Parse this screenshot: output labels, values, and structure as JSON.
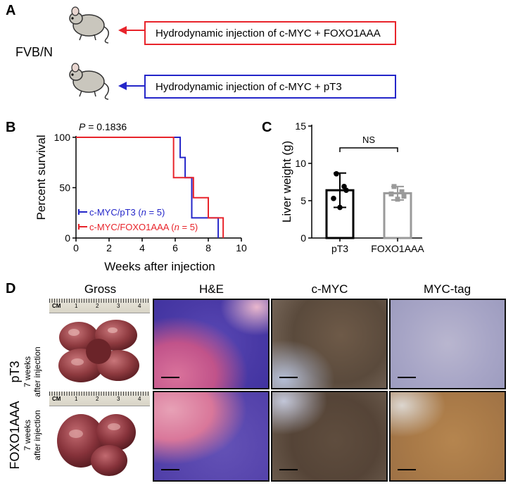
{
  "panels": {
    "A": "A",
    "B": "B",
    "C": "C",
    "D": "D"
  },
  "panel_a": {
    "strain": "FVB/N",
    "boxes": [
      {
        "text": "Hydrodynamic injection of c-MYC + FOXO1AAA",
        "color": "#e8242b"
      },
      {
        "text": "Hydrodynamic injection of c-MYC + pT3",
        "color": "#2426c9"
      }
    ]
  },
  "chart_data": [
    {
      "type": "line",
      "panel": "B",
      "annotation": "P = 0.1836",
      "ylabel": "Percent survival",
      "xlabel": "Weeks after injection",
      "xlim": [
        0,
        10
      ],
      "ylim": [
        0,
        100
      ],
      "xticks": [
        0,
        2,
        4,
        6,
        8,
        10
      ],
      "yticks": [
        0,
        50,
        100
      ],
      "legend_position": "bottom-left",
      "series": [
        {
          "name": "c-MYC/pT3 (n = 5)",
          "color": "#2426c9",
          "steps": [
            [
              0,
              100
            ],
            [
              6.3,
              100
            ],
            [
              6.3,
              80
            ],
            [
              6.6,
              80
            ],
            [
              6.6,
              60
            ],
            [
              7.0,
              60
            ],
            [
              7.0,
              20
            ],
            [
              8.6,
              20
            ],
            [
              8.6,
              0
            ]
          ]
        },
        {
          "name": "c-MYC/FOXO1AAA (n = 5)",
          "color": "#e8242b",
          "steps": [
            [
              0,
              100
            ],
            [
              5.9,
              100
            ],
            [
              5.9,
              60
            ],
            [
              7.1,
              60
            ],
            [
              7.1,
              40
            ],
            [
              8.0,
              40
            ],
            [
              8.0,
              20
            ],
            [
              8.9,
              20
            ],
            [
              8.9,
              0
            ]
          ]
        }
      ]
    },
    {
      "type": "bar",
      "panel": "C",
      "ylabel": "Liver weight (g)",
      "categories": [
        "pT3",
        "FOXO1AAA"
      ],
      "values": [
        6.4,
        6.0
      ],
      "errors": [
        2.3,
        0.9
      ],
      "ylim": [
        0,
        15
      ],
      "yticks": [
        0,
        5,
        10,
        15
      ],
      "annotation": "NS",
      "points": [
        [
          8.6,
          6.9,
          5.3,
          4.1,
          6.4
        ],
        [
          6.9,
          6.2,
          5.9,
          5.2,
          5.6
        ]
      ],
      "colors": [
        "#000000",
        "#9a9a9a"
      ]
    }
  ],
  "panel_d": {
    "columns": [
      "Gross",
      "H&E",
      "c-MYC",
      "MYC-tag"
    ],
    "rows": [
      {
        "name": "pT3",
        "sub1": "7 weeks",
        "sub2": "after injection"
      },
      {
        "name": "FOXO1AAA",
        "sub1": "7 weeks",
        "sub2": "after injection"
      }
    ],
    "ruler_label": "CM",
    "ruler_numbers": [
      "1",
      "2",
      "3",
      "4"
    ]
  }
}
